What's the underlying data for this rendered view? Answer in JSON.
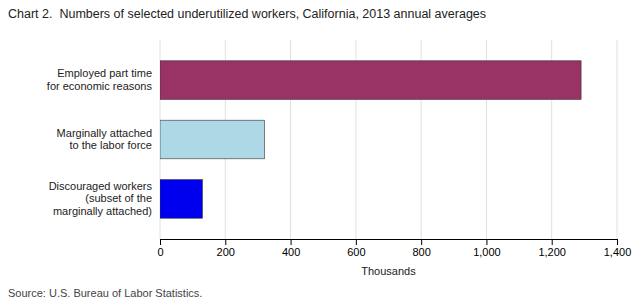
{
  "chart_data": {
    "type": "bar",
    "orientation": "horizontal",
    "title": "Chart 2.  Numbers of selected underutilized workers, California, 2013 annual averages",
    "categories": [
      "Discouraged workers\n(subset of the\nmarginally attached)",
      "Marginally attached\nto the labor force",
      "Employed part time\nfor economic reasons"
    ],
    "values": [
      130,
      320,
      1290
    ],
    "colors": [
      "#0000ee",
      "#add8e6",
      "#993366"
    ],
    "xlim": [
      0,
      1400
    ],
    "xticks": [
      0,
      200,
      400,
      600,
      800,
      {
        "value": 1000,
        "label": "1,000"
      },
      {
        "value": 1200,
        "label": "1,200"
      },
      {
        "value": 1400,
        "label": "1,400"
      }
    ],
    "xlabel": "Thousands",
    "source": "Source: U.S. Bureau of Labor Statistics.",
    "grid": true
  }
}
